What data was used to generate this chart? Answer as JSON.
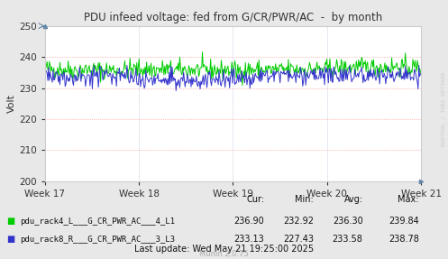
{
  "title": "PDU infeed voltage: fed from G/CR/PWR/AC  -  by month",
  "ylabel": "Volt",
  "bg_color": "#e8e8e8",
  "plot_bg_color": "#ffffff",
  "grid_color_h": "#ff8888",
  "grid_color_v": "#aaaacc",
  "ylim": [
    200,
    250
  ],
  "yticks": [
    200,
    210,
    220,
    230,
    240,
    250
  ],
  "xlabel_weeks": [
    "Week 17",
    "Week 18",
    "Week 19",
    "Week 20",
    "Week 21"
  ],
  "line1_label": "pdu_rack4_L___G_CR_PWR_AC___4_L1",
  "line1_color": "#00cc00",
  "line1_mean": 236.1,
  "line2_label": "pdu_rack8_R___G_CR_PWR_AC___3_L3",
  "line2_color": "#3333cc",
  "line2_mean": 233.8,
  "legend_cur1": "236.90",
  "legend_min1": "232.92",
  "legend_avg1": "236.30",
  "legend_max1": "239.84",
  "legend_cur2": "233.13",
  "legend_min2": "227.43",
  "legend_avg2": "233.58",
  "legend_max2": "238.78",
  "last_update": "Last update: Wed May 21 19:25:00 2025",
  "munin_version": "Munin 2.0.75",
  "watermark": "RRDTOOL / TOBI OETIKER",
  "n_points": 500
}
